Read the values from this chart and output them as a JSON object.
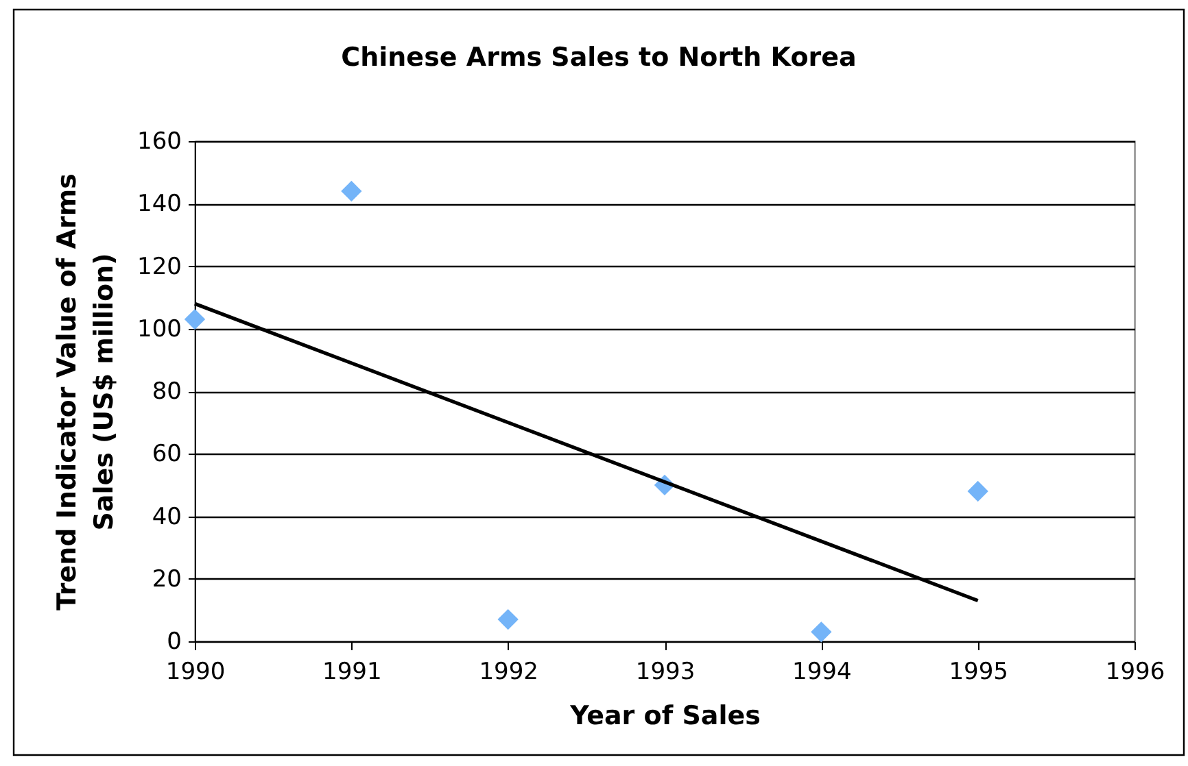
{
  "chart_data": {
    "type": "scatter",
    "title": "Chinese Arms Sales to North Korea",
    "xlabel": "Year of Sales",
    "ylabel": "Trend Indicator Value of Arms\nSales (US$ million)",
    "series": [
      {
        "color": "#74b4f8",
        "marker": "diamond",
        "x": [
          1990,
          1991,
          1992,
          1993,
          1994,
          1995
        ],
        "values": [
          103,
          144,
          7,
          50,
          3,
          48
        ]
      },
      {
        "type": "line",
        "color": "#000000",
        "x": [
          1990,
          1995
        ],
        "values": [
          108,
          13
        ]
      }
    ],
    "xlim": [
      1990,
      1996
    ],
    "xticks": [
      1990,
      1991,
      1992,
      1993,
      1994,
      1995,
      1996
    ],
    "ylim": [
      0,
      160
    ],
    "yticks": [
      0,
      20,
      40,
      60,
      80,
      100,
      120,
      140,
      160
    ],
    "grid": "y"
  }
}
